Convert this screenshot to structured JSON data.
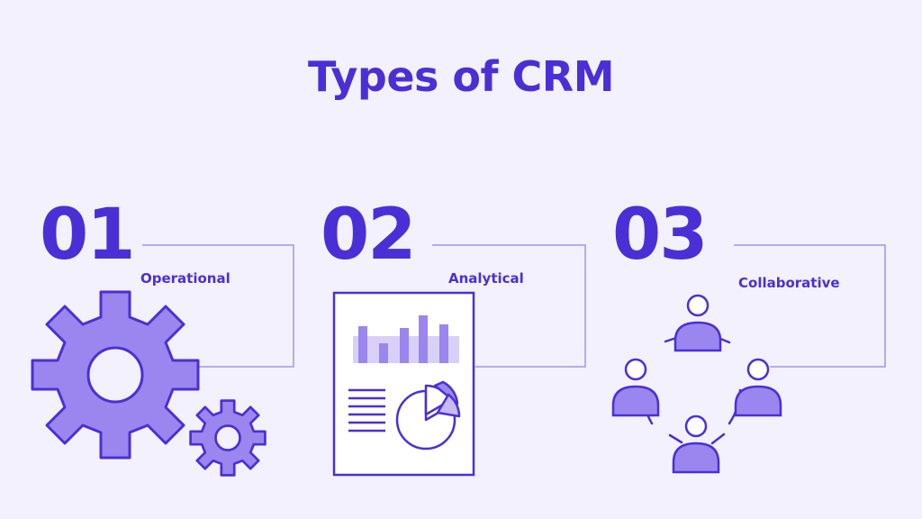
{
  "title": "Types of CRM",
  "colors": {
    "background": "#f3f1fd",
    "primary": "#4b2fd6",
    "fill": "#9a86ee",
    "fill_light": "#c6b9f6",
    "line": "#a394ee"
  },
  "types": [
    {
      "number": "01",
      "label": "Operational",
      "icon": "gears-icon"
    },
    {
      "number": "02",
      "label": "Analytical",
      "icon": "report-chart-icon"
    },
    {
      "number": "03",
      "label": "Collaborative",
      "icon": "people-network-icon"
    }
  ]
}
